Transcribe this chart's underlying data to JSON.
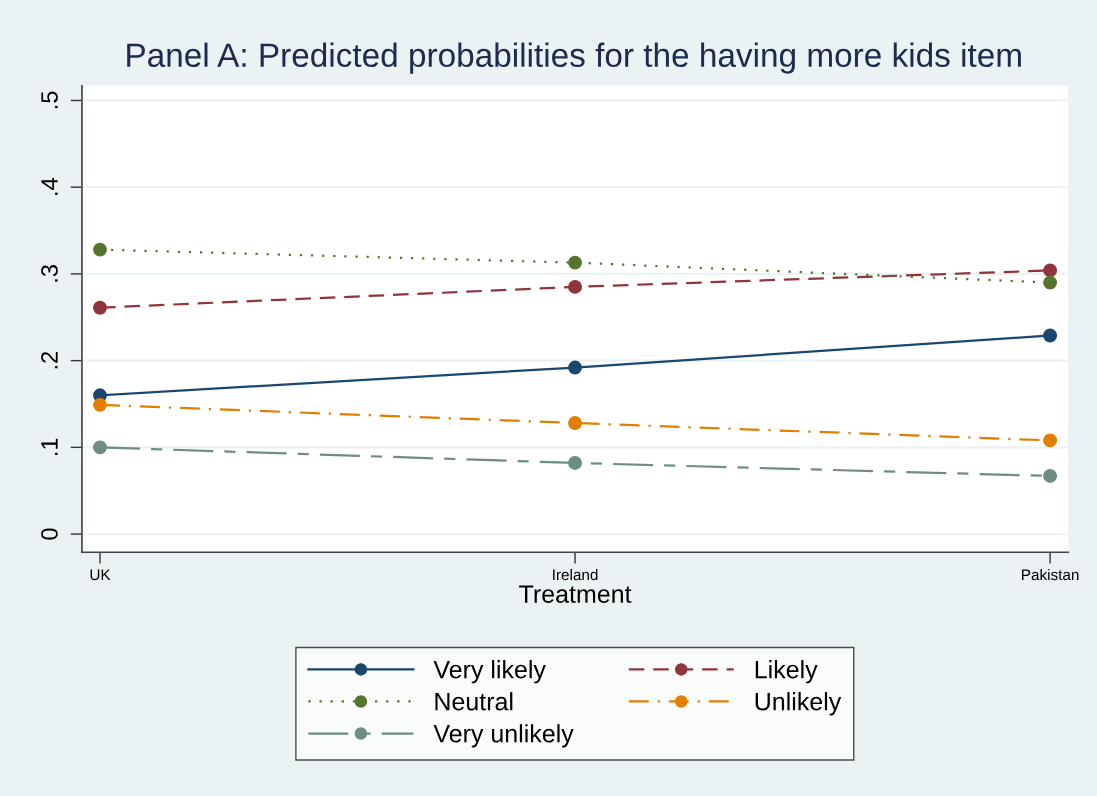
{
  "chart_data": {
    "type": "line",
    "title": "Panel A: Predicted probabilities for the having more kids item",
    "xlabel": "Treatment",
    "categories": [
      "UK",
      "Ireland",
      "Pakistan"
    ],
    "series": [
      {
        "name": "Very likely",
        "color": "#1a476f",
        "line_style": "solid",
        "values": [
          0.16,
          0.192,
          0.229
        ]
      },
      {
        "name": "Likely",
        "color": "#90353b",
        "line_style": "dashed",
        "values": [
          0.261,
          0.285,
          0.304
        ]
      },
      {
        "name": "Neutral",
        "color": "#55752f",
        "line_style": "dotted",
        "values": [
          0.328,
          0.313,
          0.29
        ]
      },
      {
        "name": "Unlikely",
        "color": "#e37e00",
        "line_style": "dashdot",
        "values": [
          0.149,
          0.128,
          0.108
        ]
      },
      {
        "name": "Very unlikely",
        "color": "#6e8e84",
        "line_style": "longdashdot",
        "values": [
          0.1,
          0.082,
          0.067
        ]
      }
    ],
    "ylim": [
      -0.021,
      0.517
    ],
    "yticks": [
      0,
      {
        "value": 0.1,
        "label": ".1"
      },
      {
        "value": 0.2,
        "label": ".2"
      },
      {
        "value": 0.3,
        "label": ".3"
      },
      {
        "value": 0.4,
        "label": ".4"
      },
      {
        "value": 0.5,
        "label": ".5"
      }
    ],
    "grid": "y",
    "legend": "bottom",
    "marker": "circle"
  }
}
